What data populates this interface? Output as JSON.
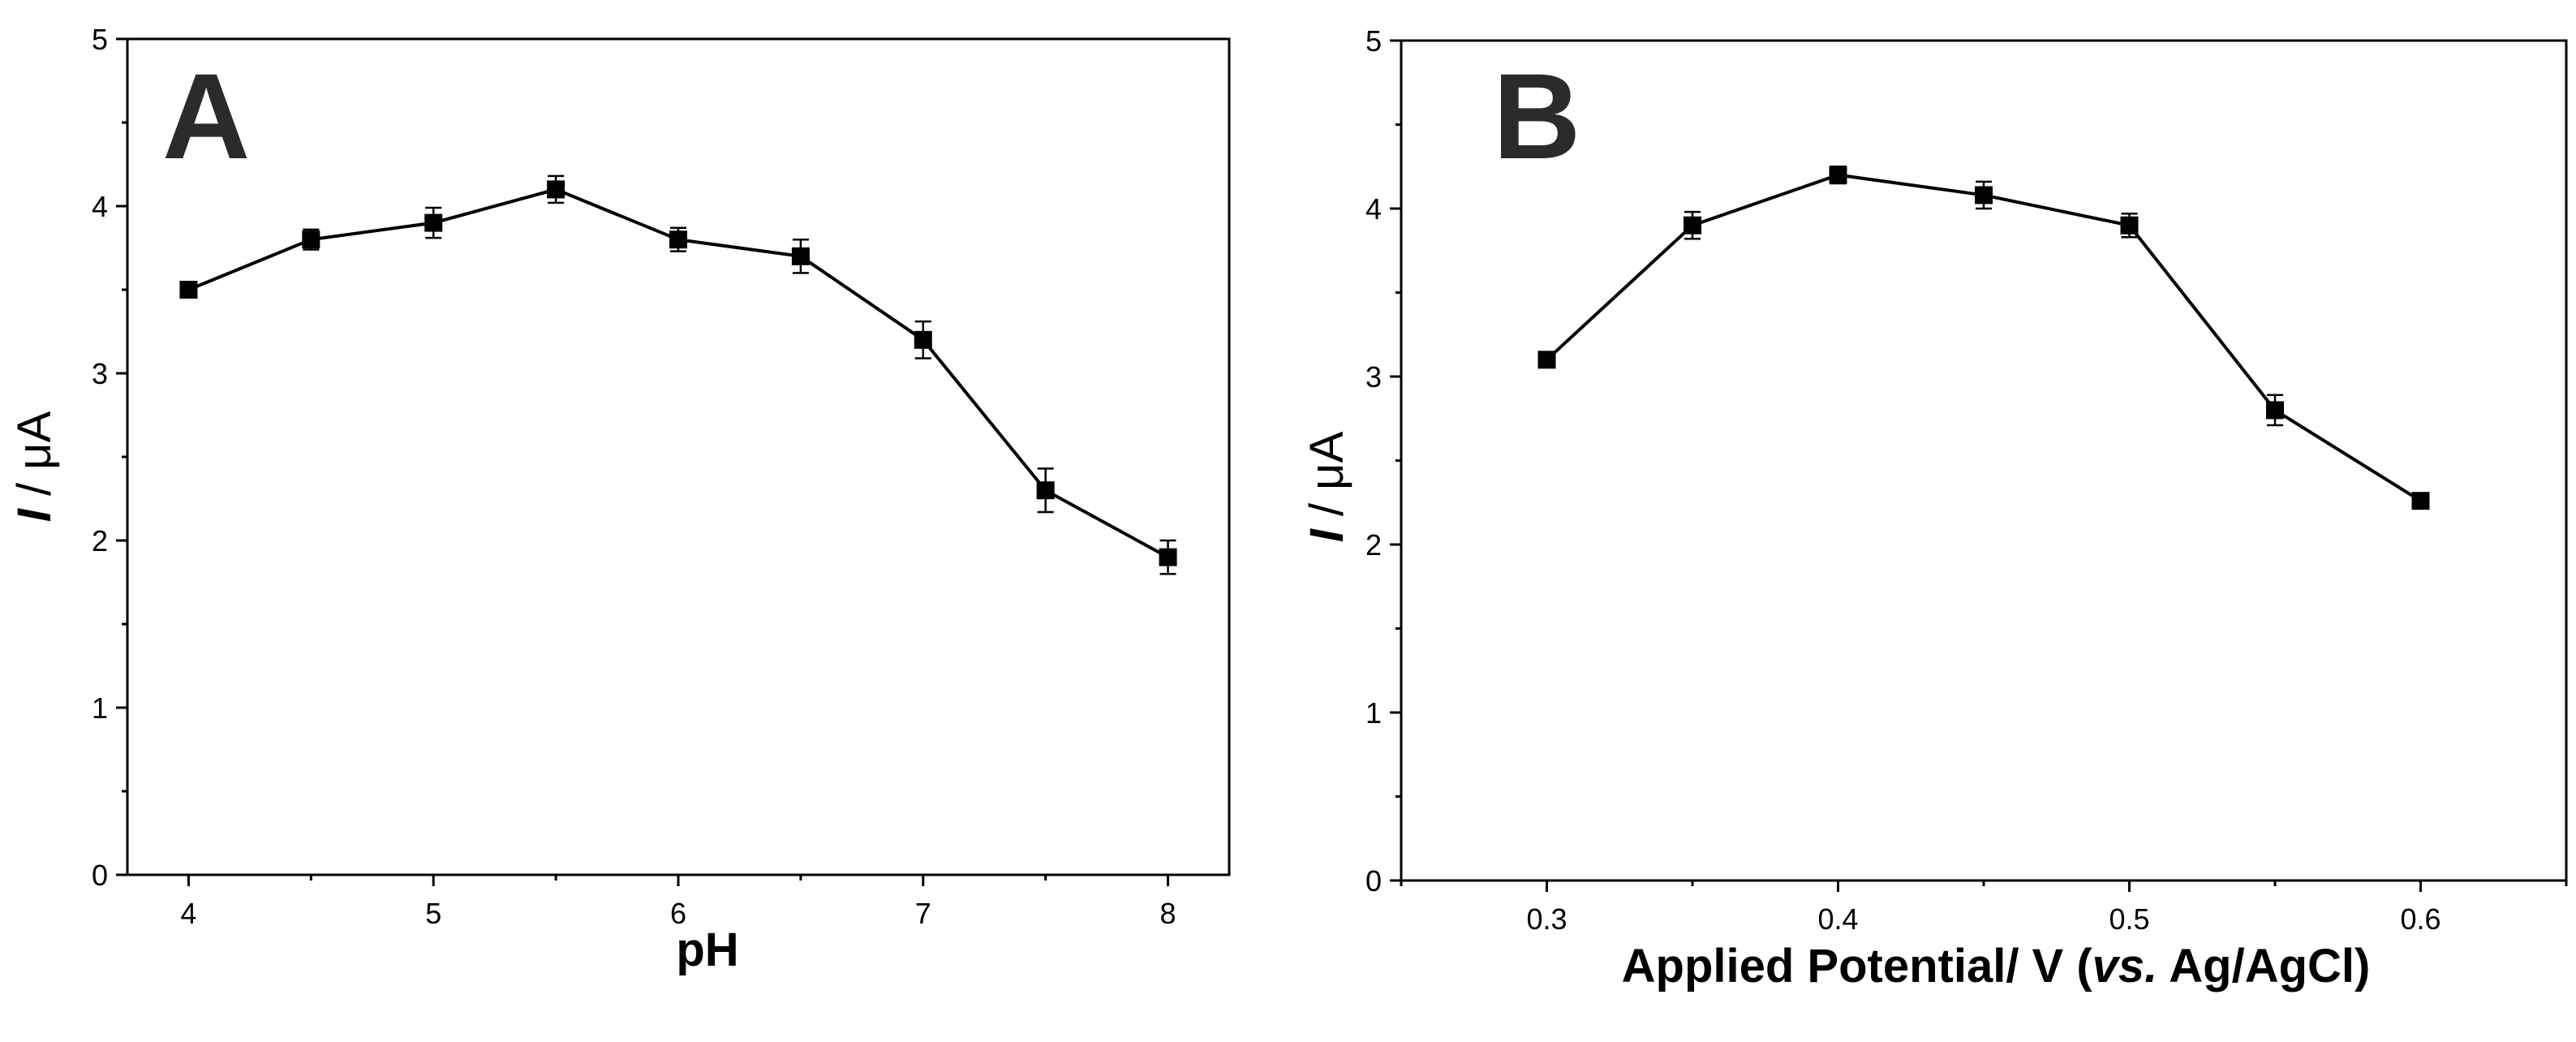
{
  "chart_data": [
    {
      "type": "line",
      "panel_label": "A",
      "xlabel": "pH",
      "ylabel_italic": "I",
      "ylabel_rest": " / μA",
      "xlim": [
        3.75,
        8.25
      ],
      "ylim": [
        0,
        5
      ],
      "xticks": [
        4,
        5,
        6,
        7,
        8
      ],
      "xtick_labels": [
        "4",
        "5",
        "6",
        "7",
        "8"
      ],
      "yticks": [
        0,
        1,
        2,
        3,
        4,
        5
      ],
      "ytick_labels": [
        "0",
        "1",
        "2",
        "3",
        "4",
        "5"
      ],
      "marker": "square",
      "line_color": "#000000",
      "x": [
        4,
        4.5,
        5,
        5.5,
        6,
        6.5,
        7,
        7.5,
        8
      ],
      "y": [
        3.5,
        3.8,
        3.9,
        4.1,
        3.8,
        3.7,
        3.2,
        2.3,
        1.9
      ],
      "err": [
        0.03,
        0.06,
        0.09,
        0.08,
        0.07,
        0.1,
        0.11,
        0.13,
        0.1
      ]
    },
    {
      "type": "line",
      "panel_label": "B",
      "xlabel_parts": [
        "Applied Potential/ V (",
        "vs.",
        " Ag/AgCl)"
      ],
      "ylabel_italic": "I",
      "ylabel_rest": " / μA",
      "xlim": [
        0.25,
        0.65
      ],
      "ylim": [
        0,
        5
      ],
      "xticks": [
        0.3,
        0.4,
        0.5,
        0.6
      ],
      "xtick_labels": [
        "0.3",
        "0.4",
        "0.5",
        "0.6"
      ],
      "yticks": [
        0,
        1,
        2,
        3,
        4,
        5
      ],
      "ytick_labels": [
        "0",
        "1",
        "2",
        "3",
        "4",
        "5"
      ],
      "marker": "square",
      "line_color": "#000000",
      "x": [
        0.3,
        0.35,
        0.4,
        0.45,
        0.5,
        0.55,
        0.6
      ],
      "y": [
        3.1,
        3.9,
        4.2,
        4.08,
        3.9,
        2.8,
        2.26
      ],
      "err": [
        0.03,
        0.08,
        0.05,
        0.08,
        0.07,
        0.09,
        0.03
      ]
    }
  ]
}
